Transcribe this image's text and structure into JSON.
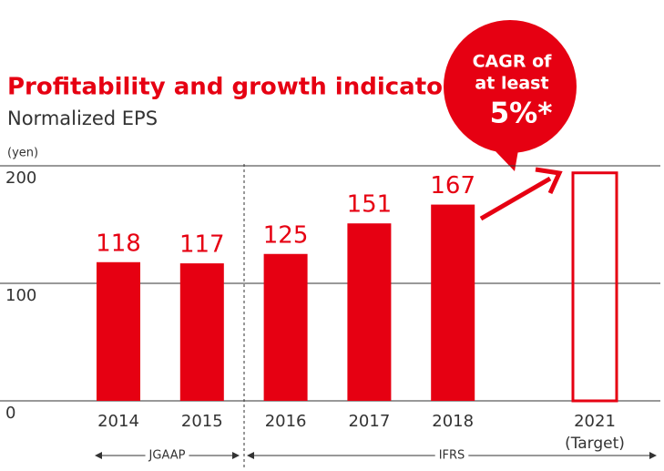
{
  "chart_data": {
    "type": "bar",
    "title": "Profitability and growth indicator",
    "subtitle": "Normalized EPS",
    "y_unit": "(yen)",
    "categories": [
      "2014",
      "2015",
      "2016",
      "2017",
      "2018",
      "2021"
    ],
    "values": [
      118,
      117,
      125,
      151,
      167,
      null
    ],
    "color": "#e60012",
    "target": {
      "value": 194,
      "label": "(Target)"
    },
    "ylim": [
      0,
      200
    ],
    "yticks": [
      0,
      100,
      200
    ],
    "grid": true,
    "periods": [
      {
        "label": "JGAAP"
      },
      {
        "label": "IFRS"
      }
    ],
    "callout": {
      "lines": [
        "CAGR of",
        "at least",
        "5%*"
      ]
    }
  }
}
